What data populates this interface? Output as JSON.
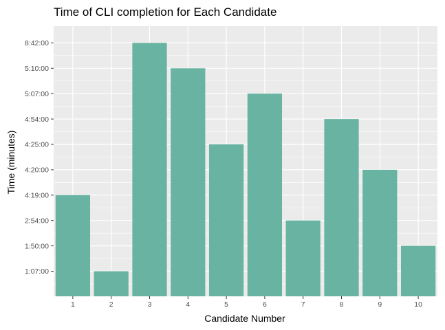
{
  "chart_data": {
    "type": "bar",
    "title": "Time of CLI completion for Each Candidate",
    "xlabel": "Candidate Number",
    "ylabel": "Time (minutes)",
    "categories": [
      "1",
      "2",
      "3",
      "4",
      "5",
      "6",
      "7",
      "8",
      "9",
      "10"
    ],
    "y_levels": [
      "1:07:00",
      "1:50:00",
      "2:54:00",
      "4:19:00",
      "4:20:00",
      "4:25:00",
      "4:54:00",
      "5:07:00",
      "5:10:00",
      "8:42:00"
    ],
    "values": [
      "4:19:00",
      "1:07:00",
      "8:42:00",
      "5:10:00",
      "4:25:00",
      "5:07:00",
      "2:54:00",
      "4:54:00",
      "4:20:00",
      "1:50:00"
    ],
    "y_scale": "categorical",
    "grid": true,
    "legend": "none",
    "colors": {
      "bar": "#69b3a2",
      "panel": "#ebebeb",
      "grid": "#ffffff"
    }
  }
}
